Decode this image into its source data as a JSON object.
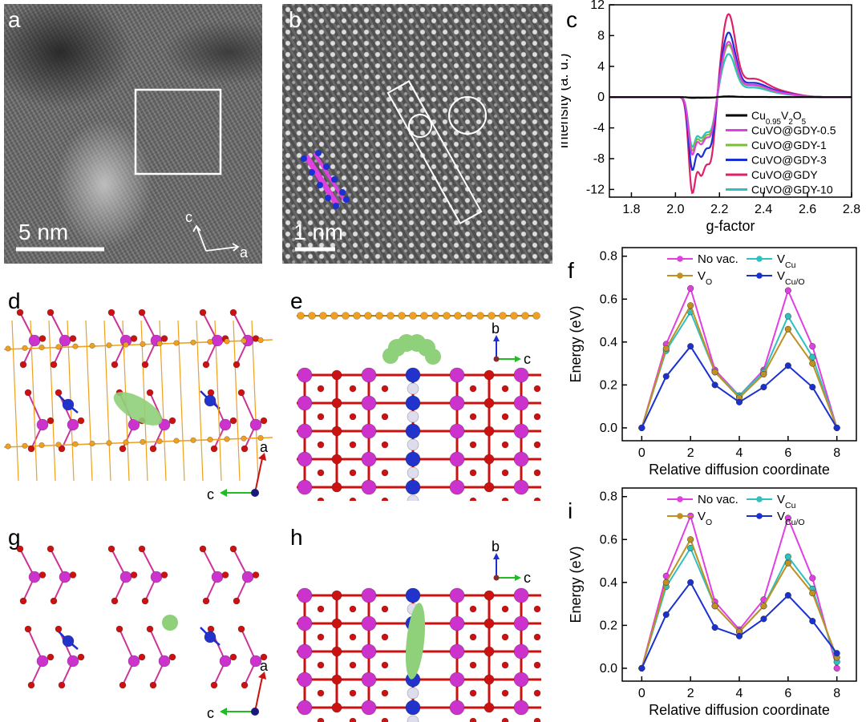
{
  "panels": {
    "a": {
      "label": "a",
      "scalebar": "5 nm",
      "axis_c": "c",
      "axis_a": "a"
    },
    "b": {
      "label": "b",
      "scalebar": "1 nm"
    },
    "c": {
      "label": "c"
    },
    "d": {
      "label": "d",
      "axis_a": "a",
      "axis_c": "c"
    },
    "e": {
      "label": "e",
      "axis_b": "b",
      "axis_c": "c"
    },
    "f": {
      "label": "f"
    },
    "g": {
      "label": "g",
      "axis_a": "a",
      "axis_c": "c"
    },
    "h": {
      "label": "h",
      "axis_b": "b",
      "axis_c": "c"
    },
    "i": {
      "label": "i"
    }
  },
  "colors": {
    "no_vac": "#e040e0",
    "v_cu": "#30c0c0",
    "v_o": "#c09020",
    "v_cuo": "#1a30d0",
    "v_atom": "#cc33cc",
    "o_atom": "#cc1111",
    "cu_atom": "#2233cc",
    "c_atom": "#f0a020",
    "li": "#90d080"
  },
  "chart_data": [
    {
      "type": "line",
      "panel": "c",
      "xlabel": "g-factor",
      "ylabel": "Intensity (a. u.)",
      "xlim": [
        1.7,
        2.8
      ],
      "ylim": [
        -13,
        12
      ],
      "xticks": [
        "1.8",
        "2.0",
        "2.2",
        "2.4",
        "2.6",
        "2.8"
      ],
      "yticks": [
        "12",
        "8",
        "4",
        "0",
        "-4",
        "-8",
        "-12"
      ],
      "legend_position": "bottom-right",
      "series": [
        {
          "name": "Cu0.95V2O5",
          "color": "#000000",
          "neg_peak": -0.1,
          "pos_peak": 0.1
        },
        {
          "name": "CuVO@GDY-0.5",
          "color": "#e040e0",
          "neg_peak": -7.5,
          "pos_peak": 7.2
        },
        {
          "name": "CuVO@GDY-1",
          "color": "#77c030",
          "neg_peak": -7.0,
          "pos_peak": 6.8
        },
        {
          "name": "CuVO@GDY-3",
          "color": "#1a30d0",
          "neg_peak": -9.5,
          "pos_peak": 8.4
        },
        {
          "name": "CuVO@GDY",
          "color": "#e0206a",
          "neg_peak": -12.5,
          "pos_peak": 10.8
        },
        {
          "name": "CuVO@GDY-10",
          "color": "#30c0c0",
          "neg_peak": -6.5,
          "pos_peak": 5.6
        }
      ]
    },
    {
      "type": "line",
      "panel": "f",
      "xlabel": "Relative diffusion coordinate",
      "ylabel": "Energy (eV)",
      "xlim": [
        -0.8,
        8.8
      ],
      "ylim": [
        -0.06,
        0.84
      ],
      "x": [
        0,
        1,
        2,
        3,
        4,
        5,
        6,
        7,
        8
      ],
      "xticks": [
        "0",
        "2",
        "4",
        "6",
        "8"
      ],
      "yticks": [
        "0.0",
        "0.2",
        "0.4",
        "0.6",
        "0.8"
      ],
      "legend_position": "top",
      "series": [
        {
          "name": "No vac.",
          "color": "#e040e0",
          "values": [
            0,
            0.39,
            0.65,
            0.27,
            0.15,
            0.27,
            0.64,
            0.38,
            0
          ]
        },
        {
          "name": "VCu",
          "color": "#30c0c0",
          "values": [
            0,
            0.36,
            0.54,
            0.26,
            0.15,
            0.26,
            0.52,
            0.33,
            0
          ]
        },
        {
          "name": "VO",
          "color": "#c09020",
          "values": [
            0,
            0.37,
            0.57,
            0.26,
            0.14,
            0.25,
            0.46,
            0.3,
            0
          ]
        },
        {
          "name": "VCu/O",
          "color": "#1a30d0",
          "values": [
            0,
            0.24,
            0.38,
            0.2,
            0.12,
            0.19,
            0.29,
            0.19,
            0
          ]
        }
      ]
    },
    {
      "type": "line",
      "panel": "i",
      "xlabel": "Relative diffusion coordinate",
      "ylabel": "Energy (eV)",
      "xlim": [
        -0.8,
        8.8
      ],
      "ylim": [
        -0.06,
        0.84
      ],
      "x": [
        0,
        1,
        2,
        3,
        4,
        5,
        6,
        7,
        8
      ],
      "xticks": [
        "0",
        "2",
        "4",
        "6",
        "8"
      ],
      "yticks": [
        "0.0",
        "0.2",
        "0.4",
        "0.6",
        "0.8"
      ],
      "legend_position": "top",
      "series": [
        {
          "name": "No vac.",
          "color": "#e040e0",
          "values": [
            0,
            0.43,
            0.71,
            0.31,
            0.18,
            0.32,
            0.7,
            0.42,
            0
          ]
        },
        {
          "name": "VCu",
          "color": "#30c0c0",
          "values": [
            0,
            0.38,
            0.56,
            0.29,
            0.17,
            0.29,
            0.52,
            0.37,
            0.03
          ]
        },
        {
          "name": "VO",
          "color": "#c09020",
          "values": [
            0,
            0.4,
            0.6,
            0.29,
            0.17,
            0.29,
            0.49,
            0.35,
            0.05
          ]
        },
        {
          "name": "VCu/O",
          "color": "#1a30d0",
          "values": [
            0,
            0.25,
            0.4,
            0.19,
            0.15,
            0.23,
            0.34,
            0.22,
            0.07
          ]
        }
      ]
    }
  ],
  "legend_rich": {
    "Cu0.95V2O5": [
      [
        "Cu",
        ""
      ],
      [
        "0.95",
        "sub"
      ],
      [
        "V",
        ""
      ],
      [
        "2",
        "sub"
      ],
      [
        "O",
        ""
      ],
      [
        "5",
        "sub"
      ]
    ],
    "VCu": [
      [
        "V",
        ""
      ],
      [
        "Cu",
        "sub"
      ]
    ],
    "VO": [
      [
        "V",
        ""
      ],
      [
        "O",
        "sub"
      ]
    ],
    "VCu/O": [
      [
        "V",
        ""
      ],
      [
        "Cu/O",
        "sub"
      ]
    ]
  }
}
